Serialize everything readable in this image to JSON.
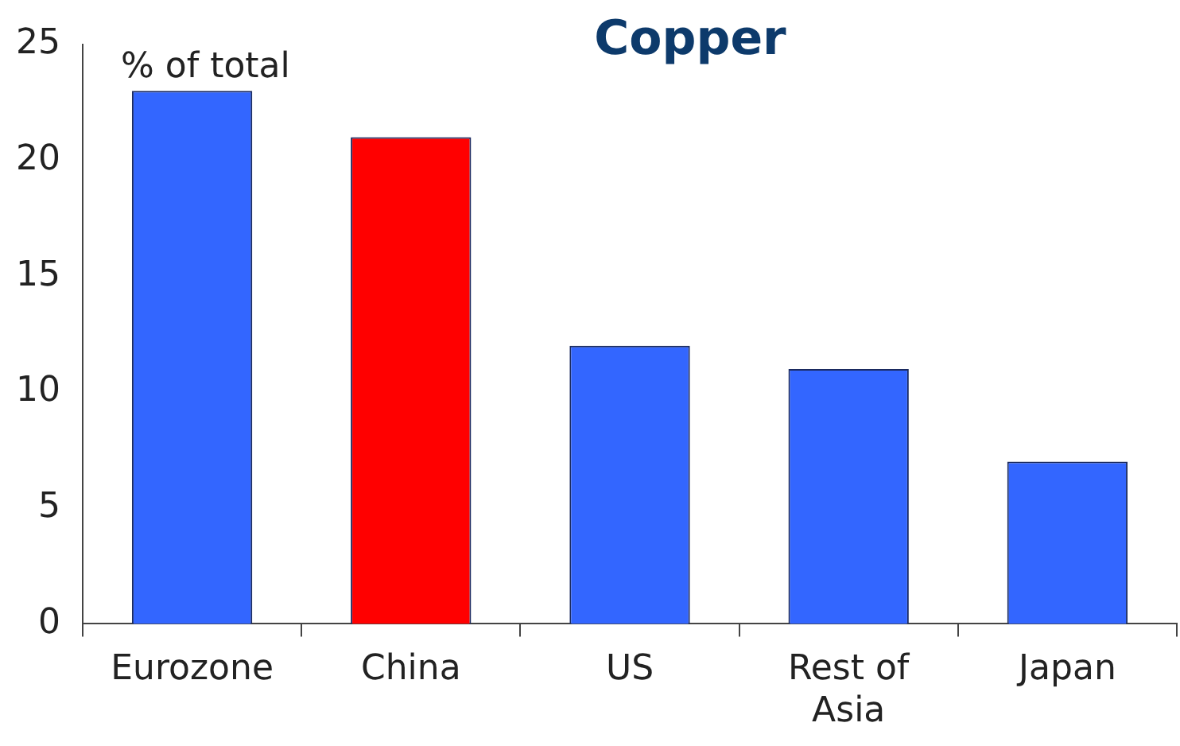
{
  "chart_data": {
    "type": "bar",
    "title": "Copper",
    "ylabel": "% of total",
    "categories": [
      "Eurozone",
      "China",
      "US",
      "Rest of Asia",
      "Japan"
    ],
    "values": [
      23,
      21,
      12,
      11,
      7
    ],
    "colors": [
      "#3366ff",
      "#ff0000",
      "#3366ff",
      "#3366ff",
      "#3366ff"
    ],
    "ylim": [
      0,
      25
    ],
    "yticks": [
      0,
      5,
      10,
      15,
      20,
      25
    ],
    "grid": false,
    "legend": false
  }
}
